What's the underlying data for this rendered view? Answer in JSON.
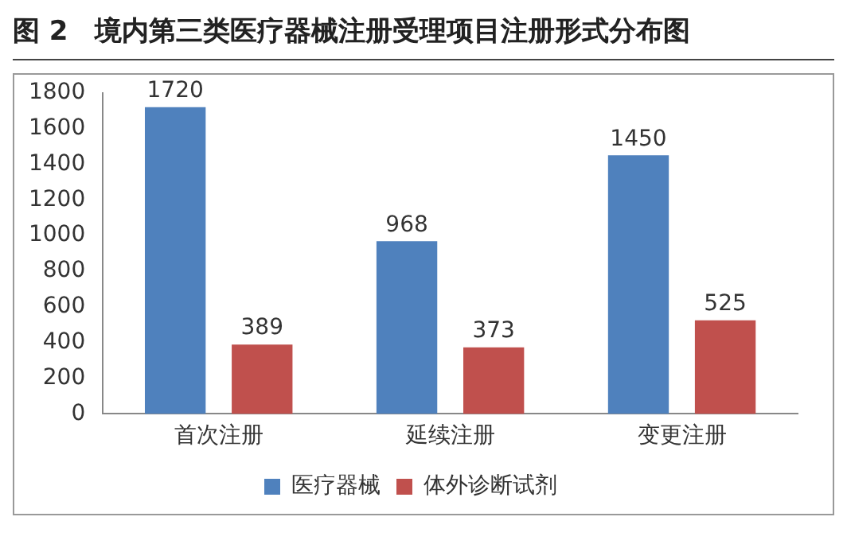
{
  "chart_data": {
    "type": "bar",
    "title": "图 2　境内第三类医疗器械注册受理项目注册形式分布图",
    "categories": [
      "首次注册",
      "延续注册",
      "变更注册"
    ],
    "series": [
      {
        "name": "医疗器械",
        "color": "#4f81bd",
        "values": [
          1720,
          968,
          1450
        ]
      },
      {
        "name": "体外诊断试剂",
        "color": "#c0504d",
        "values": [
          389,
          373,
          525
        ]
      }
    ],
    "ylim": [
      0,
      1800
    ],
    "yticks": [
      0,
      200,
      400,
      600,
      800,
      1000,
      1200,
      1400,
      1600,
      1800
    ],
    "grid": false,
    "legend": "bottom",
    "data_labels": true
  }
}
